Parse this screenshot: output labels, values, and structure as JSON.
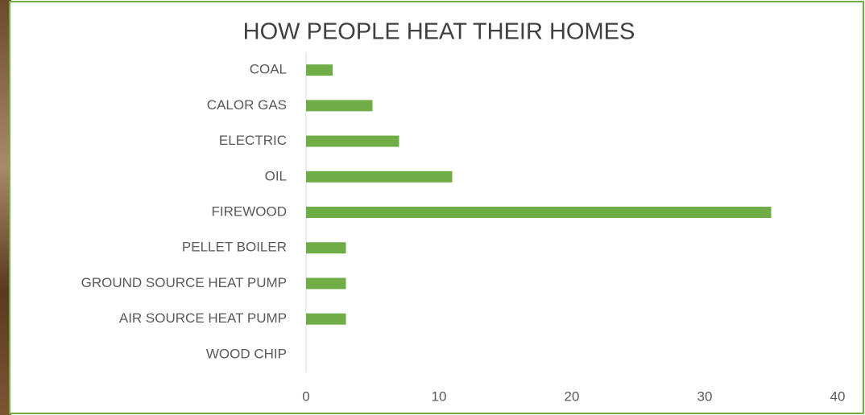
{
  "chart_data": {
    "type": "bar",
    "orientation": "horizontal",
    "title": "HOW PEOPLE HEAT THEIR HOMES",
    "categories": [
      "COAL",
      "CALOR GAS",
      "ELECTRIC",
      "OIL",
      "FIREWOOD",
      "PELLET BOILER",
      "GROUND SOURCE HEAT PUMP",
      "AIR SOURCE HEAT PUMP",
      "WOOD CHIP"
    ],
    "values": [
      2,
      5,
      7,
      11,
      35,
      3,
      3,
      3,
      0
    ],
    "color": "#70ad47",
    "xlim": [
      0,
      40
    ],
    "xticks": [
      0,
      10,
      20,
      30,
      40
    ],
    "grid": false
  }
}
